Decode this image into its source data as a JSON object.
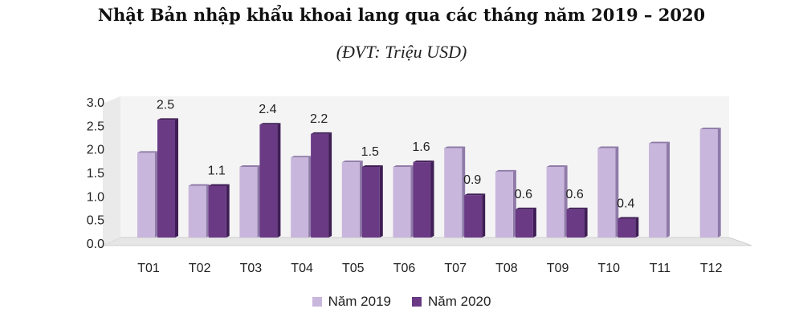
{
  "title": "Nhật Bản nhập khẩu khoai lang qua các tháng năm 2019 – 2020",
  "subtitle": "(ĐVT: Triệu USD)",
  "colors": {
    "series_2019": "#c9b6dc",
    "series_2019_dark": "#8f7aa8",
    "series_2020": "#6a3a85",
    "series_2020_dark": "#3f1e55",
    "floor": "#e6e6e6",
    "wall": "#f4f4f4"
  },
  "chart_data": {
    "type": "bar",
    "title": "Nhật Bản nhập khẩu khoai lang qua các tháng năm 2019 – 2020",
    "subtitle": "(ĐVT: Triệu USD)",
    "categories": [
      "T01",
      "T02",
      "T03",
      "T04",
      "T05",
      "T06",
      "T07",
      "T08",
      "T09",
      "T10",
      "T11",
      "T12"
    ],
    "series": [
      {
        "name": "Năm 2019",
        "values": [
          1.8,
          1.1,
          1.5,
          1.7,
          1.6,
          1.5,
          1.9,
          1.4,
          1.5,
          1.9,
          2.0,
          2.3
        ]
      },
      {
        "name": "Năm 2020",
        "values": [
          2.5,
          1.1,
          2.4,
          2.2,
          1.5,
          1.6,
          0.9,
          0.6,
          0.6,
          0.4,
          null,
          null
        ]
      }
    ],
    "data_labels": [
      "2.5",
      "1.1",
      "2.4",
      "2.2",
      "1.5",
      "1.6",
      "0.9",
      "0.6",
      "0.6",
      "0.4",
      "",
      ""
    ],
    "yticks": [
      "0.0",
      "0.5",
      "1.0",
      "1.5",
      "2.0",
      "2.5",
      "3.0"
    ],
    "ylim": [
      0,
      3.0
    ],
    "xlabel": "",
    "ylabel": "",
    "legend_position": "bottom",
    "grid": false
  }
}
